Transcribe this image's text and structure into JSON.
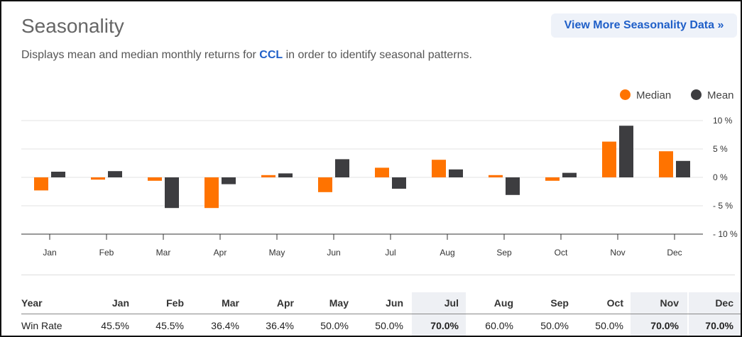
{
  "header": {
    "title": "Seasonality",
    "button_label": "View More Seasonality Data »",
    "description_prefix": "Displays mean and median monthly returns for",
    "ticker": "CCL",
    "description_suffix": "in order to identify seasonal patterns."
  },
  "colors": {
    "median": "#ff7300",
    "mean": "#3d3d40",
    "link": "#1f5fc8"
  },
  "chart_data": {
    "type": "bar",
    "categories": [
      "Jan",
      "Feb",
      "Mar",
      "Apr",
      "May",
      "Jun",
      "Jul",
      "Aug",
      "Sep",
      "Oct",
      "Nov",
      "Dec"
    ],
    "series": [
      {
        "name": "Median",
        "values": [
          -2.3,
          -0.4,
          -0.6,
          -5.4,
          0.4,
          -2.6,
          1.7,
          3.1,
          0.4,
          -0.6,
          6.3,
          4.6
        ]
      },
      {
        "name": "Mean",
        "values": [
          1.0,
          1.1,
          -5.4,
          -1.2,
          0.7,
          3.2,
          -2.0,
          1.4,
          -3.1,
          0.8,
          9.1,
          2.9
        ]
      }
    ],
    "ylim": [
      -10,
      10
    ],
    "yticks": [
      10,
      5,
      0,
      -5,
      -10
    ],
    "ytick_labels": [
      "10 %",
      "5 %",
      "0 %",
      "- 5 %",
      "- 10 %"
    ],
    "grid": true,
    "legend": "top-right"
  },
  "table": {
    "headers": [
      "Year",
      "Jan",
      "Feb",
      "Mar",
      "Apr",
      "May",
      "Jun",
      "Jul",
      "Aug",
      "Sep",
      "Oct",
      "Nov",
      "Dec"
    ],
    "rows": [
      {
        "label": "Win Rate",
        "values": [
          "45.5%",
          "45.5%",
          "36.4%",
          "36.4%",
          "50.0%",
          "50.0%",
          "70.0%",
          "60.0%",
          "50.0%",
          "50.0%",
          "70.0%",
          "70.0%"
        ]
      }
    ],
    "highlighted": [
      "Jul",
      "Nov",
      "Dec"
    ]
  }
}
